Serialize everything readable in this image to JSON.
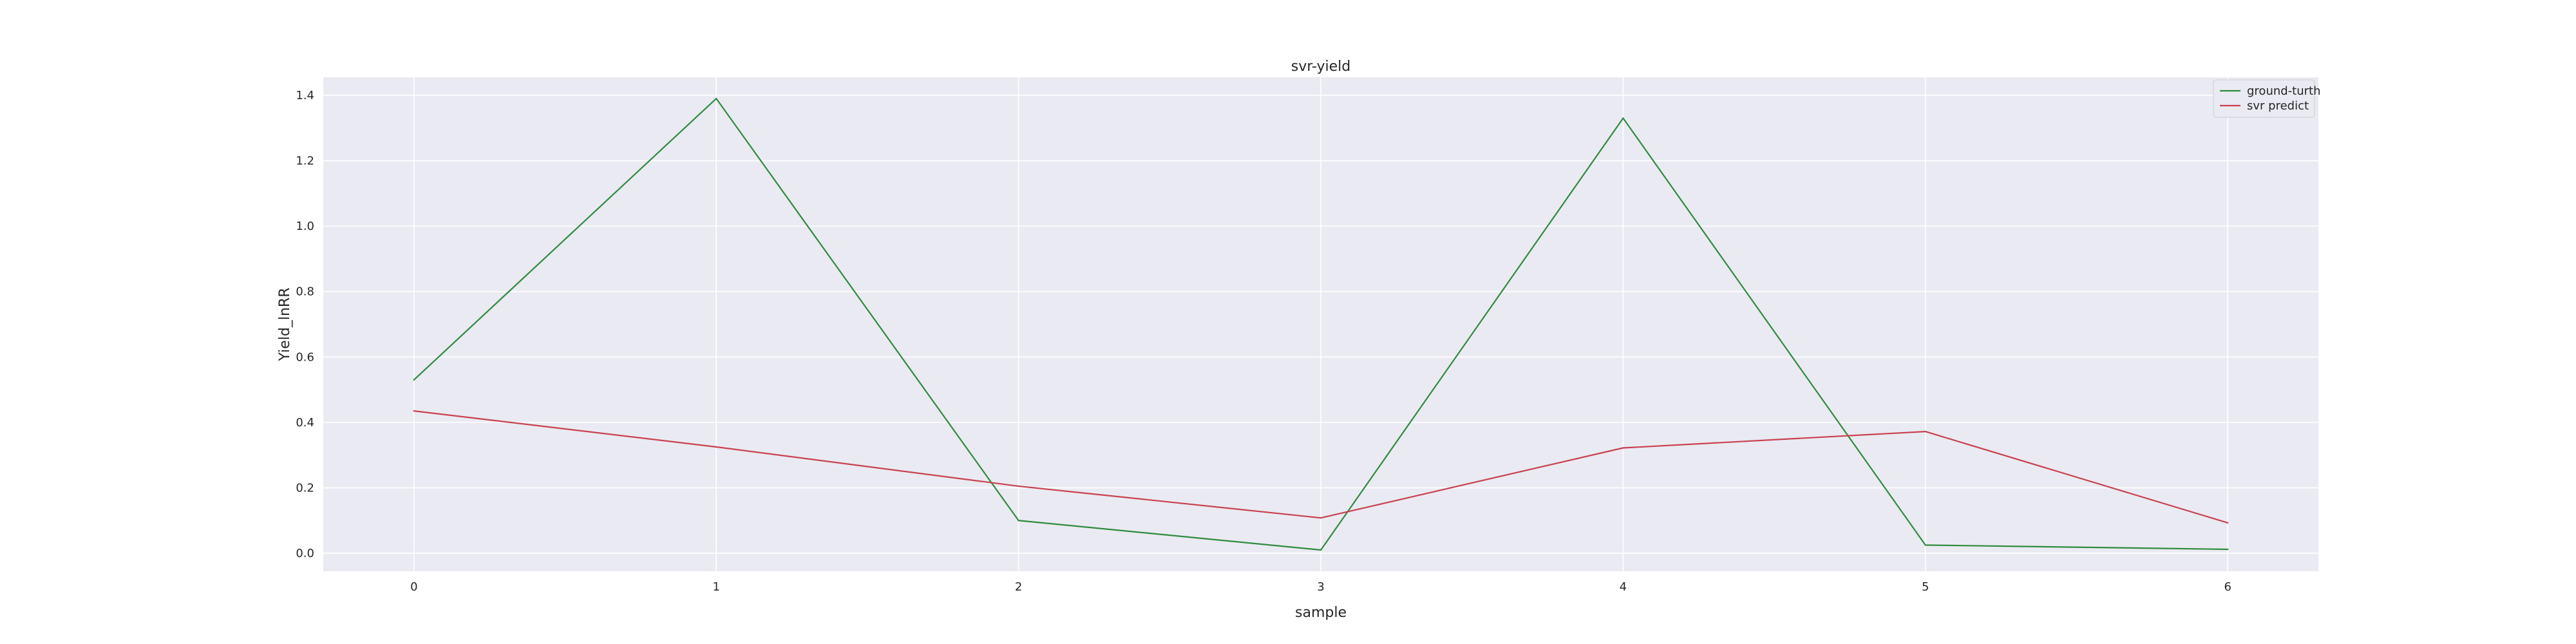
{
  "chart_data": {
    "type": "line",
    "title": "svr-yield",
    "xlabel": "sample",
    "ylabel": "Yield_lnRR",
    "x": [
      0,
      1,
      2,
      3,
      4,
      5,
      6
    ],
    "xlim": [
      -0.3,
      6.3
    ],
    "ylim": [
      -0.055,
      1.455
    ],
    "yticks": [
      0.0,
      0.2,
      0.4,
      0.6,
      0.8,
      1.0,
      1.2,
      1.4
    ],
    "ytick_labels": [
      "0.0",
      "0.2",
      "0.4",
      "0.6",
      "0.8",
      "1.0",
      "1.2",
      "1.4"
    ],
    "xticks": [
      0,
      1,
      2,
      3,
      4,
      5,
      6
    ],
    "xtick_labels": [
      "0",
      "1",
      "2",
      "3",
      "4",
      "5",
      "6"
    ],
    "grid": true,
    "legend_position": "top-right",
    "series": [
      {
        "name": "ground-turth",
        "color": "#2e8b3e",
        "values": [
          0.53,
          1.39,
          0.1,
          0.01,
          1.33,
          0.025,
          0.012
        ]
      },
      {
        "name": "svr predict",
        "color": "#c8424f",
        "values": [
          0.435,
          0.325,
          0.205,
          0.108,
          0.322,
          0.372,
          0.093
        ]
      }
    ],
    "colors": {
      "plot_background": "#eaeaf2",
      "grid": "#ffffff"
    }
  }
}
